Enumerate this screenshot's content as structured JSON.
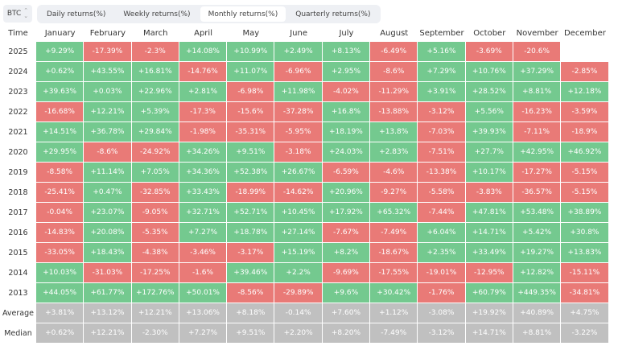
{
  "asset_selector": {
    "value": "BTC",
    "icon": "updown-chevron-icon"
  },
  "tabs": [
    {
      "label": "Daily returns(%)",
      "active": false
    },
    {
      "label": "Weekly returns(%)",
      "active": false
    },
    {
      "label": "Monthly returns(%)",
      "active": true
    },
    {
      "label": "Quarterly returns(%)",
      "active": false
    }
  ],
  "colors": {
    "positive": "#74c98f",
    "negative": "#e97a77",
    "summary": "#c0c0c0"
  },
  "table": {
    "time_header": "Time",
    "months": [
      "January",
      "February",
      "March",
      "April",
      "May",
      "June",
      "July",
      "August",
      "September",
      "October",
      "November",
      "December"
    ],
    "rows": [
      {
        "label": "2025",
        "values": [
          "+9.29%",
          "-17.39%",
          "-2.3%",
          "+14.08%",
          "+10.99%",
          "+2.49%",
          "+8.13%",
          "-6.49%",
          "+5.16%",
          "-3.69%",
          "-20.6%",
          ""
        ]
      },
      {
        "label": "2024",
        "values": [
          "+0.62%",
          "+43.55%",
          "+16.81%",
          "-14.76%",
          "+11.07%",
          "-6.96%",
          "+2.95%",
          "-8.6%",
          "+7.29%",
          "+10.76%",
          "+37.29%",
          "-2.85%"
        ]
      },
      {
        "label": "2023",
        "values": [
          "+39.63%",
          "+0.03%",
          "+22.96%",
          "+2.81%",
          "-6.98%",
          "+11.98%",
          "-4.02%",
          "-11.29%",
          "+3.91%",
          "+28.52%",
          "+8.81%",
          "+12.18%"
        ]
      },
      {
        "label": "2022",
        "values": [
          "-16.68%",
          "+12.21%",
          "+5.39%",
          "-17.3%",
          "-15.6%",
          "-37.28%",
          "+16.8%",
          "-13.88%",
          "-3.12%",
          "+5.56%",
          "-16.23%",
          "-3.59%"
        ]
      },
      {
        "label": "2021",
        "values": [
          "+14.51%",
          "+36.78%",
          "+29.84%",
          "-1.98%",
          "-35.31%",
          "-5.95%",
          "+18.19%",
          "+13.8%",
          "-7.03%",
          "+39.93%",
          "-7.11%",
          "-18.9%"
        ]
      },
      {
        "label": "2020",
        "values": [
          "+29.95%",
          "-8.6%",
          "-24.92%",
          "+34.26%",
          "+9.51%",
          "-3.18%",
          "+24.03%",
          "+2.83%",
          "-7.51%",
          "+27.7%",
          "+42.95%",
          "+46.92%"
        ]
      },
      {
        "label": "2019",
        "values": [
          "-8.58%",
          "+11.14%",
          "+7.05%",
          "+34.36%",
          "+52.38%",
          "+26.67%",
          "-6.59%",
          "-4.6%",
          "-13.38%",
          "+10.17%",
          "-17.27%",
          "-5.15%"
        ]
      },
      {
        "label": "2018",
        "values": [
          "-25.41%",
          "+0.47%",
          "-32.85%",
          "+33.43%",
          "-18.99%",
          "-14.62%",
          "+20.96%",
          "-9.27%",
          "-5.58%",
          "-3.83%",
          "-36.57%",
          "-5.15%"
        ]
      },
      {
        "label": "2017",
        "values": [
          "-0.04%",
          "+23.07%",
          "-9.05%",
          "+32.71%",
          "+52.71%",
          "+10.45%",
          "+17.92%",
          "+65.32%",
          "-7.44%",
          "+47.81%",
          "+53.48%",
          "+38.89%"
        ]
      },
      {
        "label": "2016",
        "values": [
          "-14.83%",
          "+20.08%",
          "-5.35%",
          "+7.27%",
          "+18.78%",
          "+27.14%",
          "-7.67%",
          "-7.49%",
          "+6.04%",
          "+14.71%",
          "+5.42%",
          "+30.8%"
        ]
      },
      {
        "label": "2015",
        "values": [
          "-33.05%",
          "+18.43%",
          "-4.38%",
          "-3.46%",
          "-3.17%",
          "+15.19%",
          "+8.2%",
          "-18.67%",
          "+2.35%",
          "+33.49%",
          "+19.27%",
          "+13.83%"
        ]
      },
      {
        "label": "2014",
        "values": [
          "+10.03%",
          "-31.03%",
          "-17.25%",
          "-1.6%",
          "+39.46%",
          "+2.2%",
          "-9.69%",
          "-17.55%",
          "-19.01%",
          "-12.95%",
          "+12.82%",
          "-15.11%"
        ]
      },
      {
        "label": "2013",
        "values": [
          "+44.05%",
          "+61.77%",
          "+172.76%",
          "+50.01%",
          "-8.56%",
          "-29.89%",
          "+9.6%",
          "+30.42%",
          "-1.76%",
          "+60.79%",
          "+449.35%",
          "-34.81%"
        ]
      },
      {
        "label": "Average",
        "summary": true,
        "values": [
          "+3.81%",
          "+13.12%",
          "+12.21%",
          "+13.06%",
          "+8.18%",
          "-0.14%",
          "+7.60%",
          "+1.12%",
          "-3.08%",
          "+19.92%",
          "+40.89%",
          "+4.75%"
        ]
      },
      {
        "label": "Median",
        "summary": true,
        "values": [
          "+0.62%",
          "+12.21%",
          "-2.30%",
          "+7.27%",
          "+9.51%",
          "+2.20%",
          "+8.20%",
          "-7.49%",
          "-3.12%",
          "+14.71%",
          "+8.81%",
          "-3.22%"
        ]
      }
    ]
  }
}
